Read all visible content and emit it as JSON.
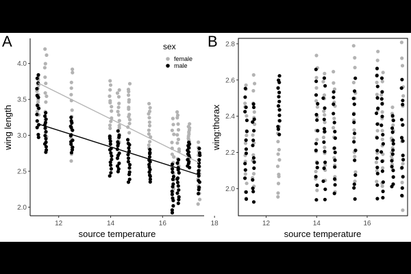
{
  "chart_data": [
    {
      "panel": "A",
      "type": "scatter",
      "xlabel": "source temperature",
      "ylabel": "wing length",
      "xlim": [
        10.9,
        17.6
      ],
      "ylim": [
        1.88,
        4.35
      ],
      "xticks": [
        12,
        14,
        16,
        18
      ],
      "yticks": [
        2.0,
        2.5,
        3.0,
        3.5,
        4.0
      ],
      "ytick_labels": [
        "2.0",
        "2.5",
        "3.0",
        "3.5",
        "4.0"
      ],
      "grid": false,
      "legend": {
        "title": "sex",
        "position": "top-right-inside",
        "entries": [
          "female",
          "male"
        ]
      },
      "x_levels": [
        11.2,
        11.5,
        12.5,
        14.0,
        14.3,
        14.7,
        15.5,
        16.4,
        16.6,
        17.0,
        17.4
      ],
      "series": [
        {
          "name": "female",
          "color": "#b3b3b3",
          "y_ranges": [
            [
              3.3,
              3.8
            ],
            [
              2.95,
              4.2
            ],
            [
              2.65,
              3.95
            ],
            [
              2.95,
              3.75
            ],
            [
              2.85,
              3.65
            ],
            [
              3.05,
              3.7
            ],
            [
              2.75,
              3.45
            ],
            [
              2.2,
              3.25
            ],
            [
              2.5,
              3.35
            ],
            [
              2.8,
              3.15
            ],
            [
              2.05,
              2.9
            ]
          ],
          "trend": {
            "x": [
              11.2,
              17.4
            ],
            "y": [
              3.73,
              2.62
            ]
          }
        },
        {
          "name": "male",
          "color": "#000000",
          "y_ranges": [
            [
              2.95,
              3.85
            ],
            [
              2.75,
              3.3
            ],
            [
              2.75,
              3.25
            ],
            [
              2.45,
              3.0
            ],
            [
              2.5,
              3.05
            ],
            [
              2.35,
              2.95
            ],
            [
              2.35,
              2.8
            ],
            [
              1.92,
              2.6
            ],
            [
              2.05,
              2.65
            ],
            [
              2.55,
              2.9
            ],
            [
              2.2,
              2.8
            ]
          ],
          "trend": {
            "x": [
              11.2,
              17.4
            ],
            "y": [
              3.16,
              2.45
            ]
          }
        }
      ]
    },
    {
      "panel": "B",
      "type": "scatter",
      "xlabel": "source temperature",
      "ylabel": "wing:thorax",
      "xlim": [
        10.9,
        17.6
      ],
      "ylim": [
        1.85,
        2.83
      ],
      "xticks": [
        12,
        14,
        16
      ],
      "yticks": [
        2.0,
        2.2,
        2.4,
        2.6,
        2.8
      ],
      "ytick_labels": [
        "2.0",
        "2.2",
        "2.4",
        "2.6",
        "2.8"
      ],
      "grid": false,
      "x_levels": [
        11.2,
        11.5,
        12.5,
        14.0,
        14.3,
        14.7,
        15.5,
        16.4,
        16.6,
        17.0,
        17.4
      ],
      "series": [
        {
          "name": "female",
          "color": "#b3b3b3",
          "y_ranges": [
            [
              1.95,
              2.58
            ],
            [
              2.0,
              2.63
            ],
            [
              1.95,
              2.4
            ],
            [
              2.0,
              2.72
            ],
            [
              2.05,
              2.62
            ],
            [
              1.98,
              2.65
            ],
            [
              2.05,
              2.77
            ],
            [
              2.05,
              2.75
            ],
            [
              2.0,
              2.63
            ],
            [
              2.1,
              2.45
            ],
            [
              1.88,
              2.8
            ]
          ],
          "trend": null
        },
        {
          "name": "male",
          "color": "#000000",
          "y_ranges": [
            [
              1.95,
              2.55
            ],
            [
              1.93,
              2.48
            ],
            [
              2.3,
              2.63
            ],
            [
              1.95,
              2.64
            ],
            [
              1.95,
              2.6
            ],
            [
              1.97,
              2.55
            ],
            [
              1.94,
              2.6
            ],
            [
              1.95,
              2.68
            ],
            [
              1.95,
              2.6
            ],
            [
              2.0,
              2.4
            ],
            [
              1.95,
              2.6
            ]
          ],
          "trend": null
        }
      ]
    }
  ]
}
